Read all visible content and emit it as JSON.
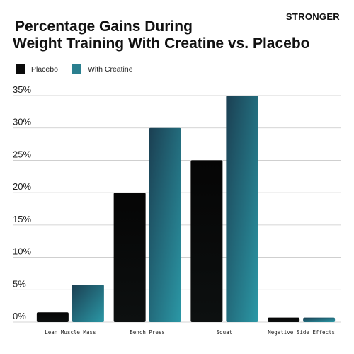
{
  "brand": "STRONGER",
  "chart_data": {
    "type": "bar",
    "title_line1": "Percentage Gains During",
    "title_line2": "Weight Training With Creatine vs. Placebo",
    "categories": [
      "Lean Muscle Mass",
      "Bench Press",
      "Squat",
      "Negative Side Effects"
    ],
    "series": [
      {
        "name": "Placebo",
        "values": [
          1.5,
          20,
          25,
          0.7
        ],
        "color": "#0a0a0a"
      },
      {
        "name": "With Creatine",
        "values": [
          5.8,
          30,
          35,
          0.7
        ],
        "color": "#2a7f8f"
      }
    ],
    "yticks": [
      "0%",
      "5%",
      "10%",
      "15%",
      "20%",
      "25%",
      "30%",
      "35%"
    ],
    "ylim": [
      0,
      35
    ],
    "grid": true,
    "legend_position": "top-left"
  }
}
